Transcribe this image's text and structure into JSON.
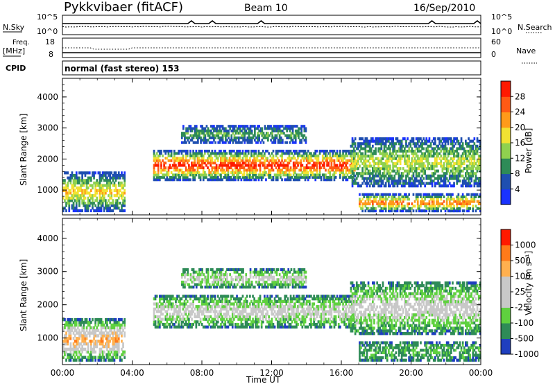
{
  "header": {
    "station": "Pykkvibaer (fitACF)",
    "beam": "Beam 10",
    "date": "16/Sep/2010"
  },
  "strip_nsky": {
    "left_label": "N.Sky",
    "left_ticks": [
      "10^5",
      "10^0"
    ],
    "right_ticks": [
      "10^5",
      "10^0"
    ],
    "right_label": "N.Search"
  },
  "strip_freq": {
    "left_label_top": "Freq.",
    "left_label_bottom": "[MHz]",
    "left_ticks": [
      "18",
      "8"
    ],
    "right_ticks": [
      "60",
      "0"
    ],
    "right_label": "Nave"
  },
  "cpid": {
    "label": "CPID",
    "text": "normal (fast stereo) 153"
  },
  "chart_data": [
    {
      "type": "heatmap",
      "name": "power",
      "ylabel": "Slant Range [km]",
      "xlabel": "Time UT",
      "x_ticks": [
        "00:00",
        "04:00",
        "08:00",
        "12:00",
        "16:00",
        "20:00",
        "00:00"
      ],
      "y_ticks": [
        1000,
        2000,
        3000,
        4000
      ],
      "ylim": [
        200,
        4600
      ],
      "xlim_hours": [
        0,
        24
      ],
      "colorbar": {
        "label": "Power [dB]",
        "ticks": [
          "4",
          "8",
          "12",
          "16",
          "20",
          "24",
          "28"
        ],
        "colors": [
          "#1a33ff",
          "#1f4fb0",
          "#2e8b57",
          "#8fd14f",
          "#f2e232",
          "#ff9a1a",
          "#ff5a14",
          "#ff1a00"
        ]
      },
      "bands": [
        {
          "desc": "early echo patch",
          "t0": 0.0,
          "t1": 3.6,
          "r0": 300,
          "r1": 1600,
          "level": 4
        },
        {
          "desc": "main band",
          "t0": 5.2,
          "t1": 16.8,
          "r0": 1300,
          "r1": 2300,
          "level": 7
        },
        {
          "desc": "upper band",
          "t0": 6.8,
          "t1": 14.0,
          "r0": 2500,
          "r1": 3100,
          "level": 2
        },
        {
          "desc": "late low range",
          "t0": 17.0,
          "t1": 24.0,
          "r0": 300,
          "r1": 900,
          "level": 6
        },
        {
          "desc": "late mid range",
          "t0": 16.5,
          "t1": 24.0,
          "r0": 1100,
          "r1": 2700,
          "level": 3
        }
      ]
    },
    {
      "type": "heatmap",
      "name": "velocity",
      "ylabel": "Slant Range [km]",
      "xlabel": "Time UT",
      "x_ticks": [
        "00:00",
        "04:00",
        "08:00",
        "12:00",
        "16:00",
        "20:00",
        "00:00"
      ],
      "y_ticks": [
        1000,
        2000,
        3000,
        4000
      ],
      "ylim": [
        200,
        4600
      ],
      "xlim_hours": [
        0,
        24
      ],
      "colorbar": {
        "label": "Velocity [m s⁻¹]",
        "ticks": [
          "1000",
          "500",
          "100",
          "25",
          "-25",
          "-100",
          "-500",
          "-1000"
        ],
        "colors": [
          "#1f3fbf",
          "#2e8b57",
          "#5fd13f",
          "#c8c8c8",
          "#c8c8c8",
          "#ffb04f",
          "#ff7a1a",
          "#ff1a00"
        ]
      },
      "bands": [
        {
          "desc": "early patch",
          "t0": 0.0,
          "t1": 3.6,
          "r0": 300,
          "r1": 1600,
          "level": 5
        },
        {
          "desc": "main band",
          "t0": 5.2,
          "t1": 16.8,
          "r0": 1300,
          "r1": 2300,
          "level": 3
        },
        {
          "desc": "upper band",
          "t0": 6.8,
          "t1": 14.0,
          "r0": 2500,
          "r1": 3100,
          "level": 3
        },
        {
          "desc": "late low range",
          "t0": 17.0,
          "t1": 24.0,
          "r0": 300,
          "r1": 900,
          "level": 1
        },
        {
          "desc": "late mid range",
          "t0": 16.5,
          "t1": 24.0,
          "r0": 1100,
          "r1": 2700,
          "level": 3
        }
      ]
    }
  ]
}
